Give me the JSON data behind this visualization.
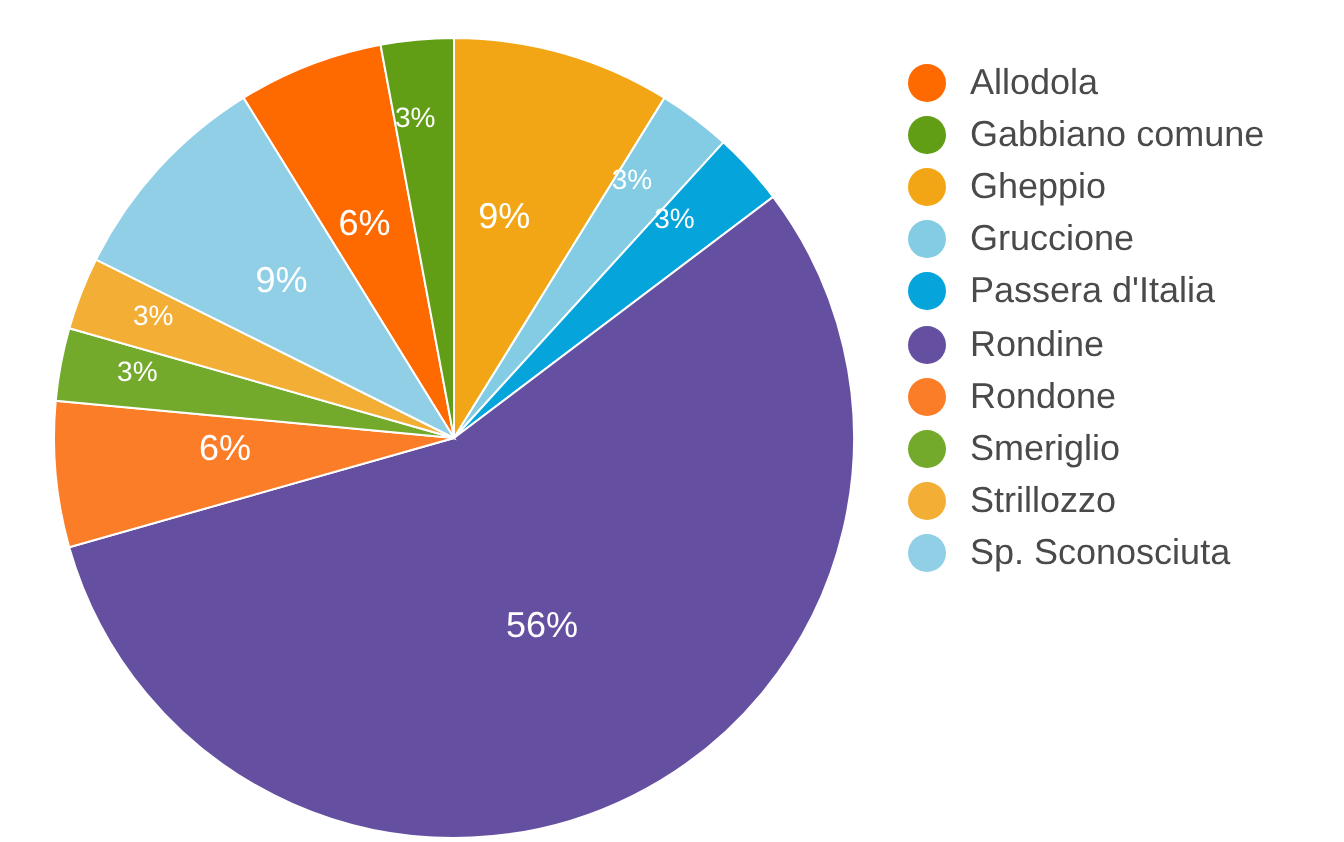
{
  "chart_data": {
    "type": "pie",
    "categories": [
      "Allodola",
      "Gabbiano comune",
      "Gheppio",
      "Gruccione",
      "Passera d'Italia",
      "Rondine",
      "Rondone",
      "Smeriglio",
      "Strillozzo",
      "Sp. Sconosciuta"
    ],
    "values": [
      5.88,
      2.94,
      8.82,
      2.94,
      2.94,
      55.9,
      5.88,
      2.94,
      2.94,
      8.82
    ],
    "value_labels": [
      "6%",
      "3%",
      "9%",
      "3%",
      "3%",
      "56%",
      "6%",
      "3%",
      "3%",
      "9%"
    ],
    "colors": [
      "#ff6a00",
      "#619e16",
      "#f2a615",
      "#84cce3",
      "#05a4db",
      "#654fa0",
      "#fc7d27",
      "#74aa2c",
      "#f3af35",
      "#90cfe6"
    ],
    "legend": "right"
  }
}
